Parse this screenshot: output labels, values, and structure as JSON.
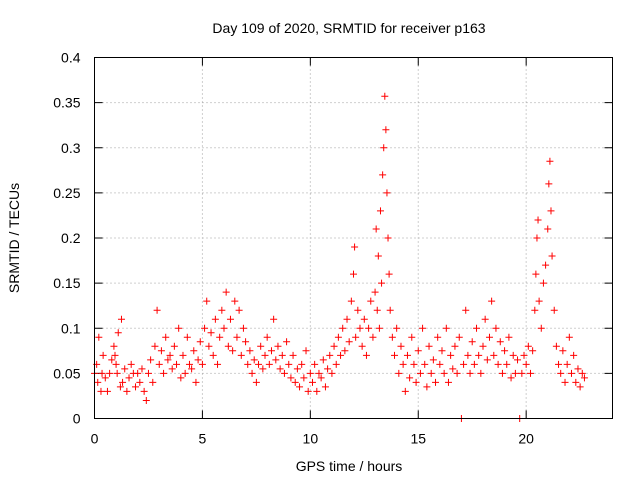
{
  "chart_data": {
    "type": "scatter",
    "title": "Day 109 of 2020, SRMTID for receiver p163",
    "xlabel": "GPS time / hours",
    "ylabel": "SRMTID / TECUs",
    "xlim": [
      0,
      24
    ],
    "ylim": [
      0,
      0.4
    ],
    "x_ticks": [
      0,
      5,
      10,
      15,
      20
    ],
    "x_tick_labels": [
      "0",
      "5",
      "10",
      "15",
      "20"
    ],
    "y_ticks": [
      0,
      0.05,
      0.1,
      0.15,
      0.2,
      0.25,
      0.3,
      0.35,
      0.4
    ],
    "y_tick_labels": [
      "0",
      "0.05",
      "0.1",
      "0.15",
      "0.2",
      "0.25",
      "0.3",
      "0.35",
      "0.4"
    ],
    "grid": true,
    "marker": "+",
    "colors": {
      "points": "#ff0000",
      "grid": "#a0a0a0",
      "axes": "#000000"
    },
    "series": [
      {
        "name": "SRMTID",
        "points": [
          [
            0.0,
            0.05
          ],
          [
            0.1,
            0.06
          ],
          [
            0.15,
            0.04
          ],
          [
            0.2,
            0.09
          ],
          [
            0.3,
            0.03
          ],
          [
            0.35,
            0.05
          ],
          [
            0.4,
            0.07
          ],
          [
            0.5,
            0.045
          ],
          [
            0.6,
            0.03
          ],
          [
            0.7,
            0.05
          ],
          [
            0.8,
            0.065
          ],
          [
            0.9,
            0.08
          ],
          [
            0.95,
            0.07
          ],
          [
            1.0,
            0.06
          ],
          [
            1.05,
            0.05
          ],
          [
            1.1,
            0.095
          ],
          [
            1.2,
            0.035
          ],
          [
            1.25,
            0.11
          ],
          [
            1.3,
            0.04
          ],
          [
            1.4,
            0.055
          ],
          [
            1.5,
            0.03
          ],
          [
            1.6,
            0.045
          ],
          [
            1.7,
            0.06
          ],
          [
            1.8,
            0.05
          ],
          [
            1.9,
            0.035
          ],
          [
            2.0,
            0.05
          ],
          [
            2.1,
            0.04
          ],
          [
            2.2,
            0.055
          ],
          [
            2.3,
            0.03
          ],
          [
            2.4,
            0.02
          ],
          [
            2.5,
            0.05
          ],
          [
            2.6,
            0.065
          ],
          [
            2.7,
            0.04
          ],
          [
            2.8,
            0.08
          ],
          [
            2.9,
            0.12
          ],
          [
            3.0,
            0.06
          ],
          [
            3.1,
            0.075
          ],
          [
            3.2,
            0.05
          ],
          [
            3.3,
            0.09
          ],
          [
            3.4,
            0.065
          ],
          [
            3.5,
            0.07
          ],
          [
            3.6,
            0.055
          ],
          [
            3.7,
            0.08
          ],
          [
            3.8,
            0.06
          ],
          [
            3.9,
            0.1
          ],
          [
            4.0,
            0.045
          ],
          [
            4.1,
            0.07
          ],
          [
            4.2,
            0.05
          ],
          [
            4.3,
            0.09
          ],
          [
            4.4,
            0.06
          ],
          [
            4.5,
            0.055
          ],
          [
            4.6,
            0.075
          ],
          [
            4.7,
            0.04
          ],
          [
            4.8,
            0.065
          ],
          [
            4.9,
            0.085
          ],
          [
            5.0,
            0.06
          ],
          [
            5.1,
            0.1
          ],
          [
            5.2,
            0.13
          ],
          [
            5.3,
            0.08
          ],
          [
            5.4,
            0.095
          ],
          [
            5.5,
            0.07
          ],
          [
            5.6,
            0.11
          ],
          [
            5.7,
            0.06
          ],
          [
            5.8,
            0.09
          ],
          [
            5.9,
            0.12
          ],
          [
            6.0,
            0.1
          ],
          [
            6.1,
            0.14
          ],
          [
            6.2,
            0.08
          ],
          [
            6.3,
            0.11
          ],
          [
            6.4,
            0.075
          ],
          [
            6.5,
            0.13
          ],
          [
            6.6,
            0.09
          ],
          [
            6.7,
            0.12
          ],
          [
            6.8,
            0.07
          ],
          [
            6.9,
            0.1
          ],
          [
            7.0,
            0.085
          ],
          [
            7.1,
            0.06
          ],
          [
            7.2,
            0.075
          ],
          [
            7.3,
            0.05
          ],
          [
            7.4,
            0.065
          ],
          [
            7.5,
            0.04
          ],
          [
            7.6,
            0.06
          ],
          [
            7.7,
            0.08
          ],
          [
            7.8,
            0.055
          ],
          [
            7.9,
            0.07
          ],
          [
            8.0,
            0.09
          ],
          [
            8.1,
            0.06
          ],
          [
            8.2,
            0.075
          ],
          [
            8.3,
            0.11
          ],
          [
            8.4,
            0.065
          ],
          [
            8.5,
            0.08
          ],
          [
            8.6,
            0.055
          ],
          [
            8.7,
            0.07
          ],
          [
            8.8,
            0.05
          ],
          [
            8.9,
            0.085
          ],
          [
            9.0,
            0.06
          ],
          [
            9.1,
            0.045
          ],
          [
            9.2,
            0.07
          ],
          [
            9.3,
            0.04
          ],
          [
            9.4,
            0.055
          ],
          [
            9.5,
            0.035
          ],
          [
            9.6,
            0.06
          ],
          [
            9.7,
            0.045
          ],
          [
            9.8,
            0.075
          ],
          [
            9.9,
            0.03
          ],
          [
            10.0,
            0.05
          ],
          [
            10.1,
            0.04
          ],
          [
            10.2,
            0.06
          ],
          [
            10.3,
            0.03
          ],
          [
            10.4,
            0.05
          ],
          [
            10.5,
            0.045
          ],
          [
            10.6,
            0.065
          ],
          [
            10.7,
            0.035
          ],
          [
            10.8,
            0.055
          ],
          [
            10.9,
            0.07
          ],
          [
            11.0,
            0.05
          ],
          [
            11.1,
            0.08
          ],
          [
            11.2,
            0.06
          ],
          [
            11.3,
            0.09
          ],
          [
            11.4,
            0.07
          ],
          [
            11.5,
            0.1
          ],
          [
            11.6,
            0.075
          ],
          [
            11.7,
            0.11
          ],
          [
            11.8,
            0.085
          ],
          [
            11.9,
            0.13
          ],
          [
            12.0,
            0.16
          ],
          [
            12.05,
            0.19
          ],
          [
            12.1,
            0.09
          ],
          [
            12.2,
            0.12
          ],
          [
            12.3,
            0.1
          ],
          [
            12.4,
            0.08
          ],
          [
            12.5,
            0.11
          ],
          [
            12.6,
            0.07
          ],
          [
            12.7,
            0.1
          ],
          [
            12.8,
            0.13
          ],
          [
            12.9,
            0.09
          ],
          [
            13.0,
            0.14
          ],
          [
            13.05,
            0.21
          ],
          [
            13.1,
            0.12
          ],
          [
            13.15,
            0.18
          ],
          [
            13.2,
            0.1
          ],
          [
            13.25,
            0.23
          ],
          [
            13.3,
            0.15
          ],
          [
            13.35,
            0.27
          ],
          [
            13.4,
            0.3
          ],
          [
            13.45,
            0.357
          ],
          [
            13.5,
            0.32
          ],
          [
            13.55,
            0.25
          ],
          [
            13.6,
            0.2
          ],
          [
            13.65,
            0.16
          ],
          [
            13.7,
            0.12
          ],
          [
            13.8,
            0.09
          ],
          [
            13.9,
            0.07
          ],
          [
            14.0,
            0.1
          ],
          [
            14.1,
            0.05
          ],
          [
            14.2,
            0.08
          ],
          [
            14.3,
            0.06
          ],
          [
            14.4,
            0.03
          ],
          [
            14.5,
            0.07
          ],
          [
            14.6,
            0.045
          ],
          [
            14.7,
            0.09
          ],
          [
            14.8,
            0.06
          ],
          [
            14.9,
            0.04
          ],
          [
            15.0,
            0.075
          ],
          [
            15.1,
            0.05
          ],
          [
            15.2,
            0.1
          ],
          [
            15.3,
            0.06
          ],
          [
            15.4,
            0.035
          ],
          [
            15.5,
            0.08
          ],
          [
            15.6,
            0.05
          ],
          [
            15.7,
            0.065
          ],
          [
            15.8,
            0.04
          ],
          [
            15.9,
            0.09
          ],
          [
            16.0,
            0.06
          ],
          [
            16.1,
            0.075
          ],
          [
            16.2,
            0.05
          ],
          [
            16.3,
            0.1
          ],
          [
            16.4,
            0.04
          ],
          [
            16.5,
            0.07
          ],
          [
            16.6,
            0.055
          ],
          [
            16.7,
            0.08
          ],
          [
            16.8,
            0.05
          ],
          [
            16.9,
            0.09
          ],
          [
            17.0,
            0.0
          ],
          [
            17.1,
            0.06
          ],
          [
            17.2,
            0.12
          ],
          [
            17.3,
            0.07
          ],
          [
            17.4,
            0.05
          ],
          [
            17.5,
            0.085
          ],
          [
            17.6,
            0.06
          ],
          [
            17.7,
            0.1
          ],
          [
            17.8,
            0.07
          ],
          [
            17.9,
            0.05
          ],
          [
            18.0,
            0.08
          ],
          [
            18.1,
            0.11
          ],
          [
            18.2,
            0.065
          ],
          [
            18.3,
            0.09
          ],
          [
            18.4,
            0.13
          ],
          [
            18.5,
            0.07
          ],
          [
            18.6,
            0.1
          ],
          [
            18.7,
            0.06
          ],
          [
            18.8,
            0.085
          ],
          [
            18.9,
            0.05
          ],
          [
            19.0,
            0.075
          ],
          [
            19.1,
            0.06
          ],
          [
            19.2,
            0.09
          ],
          [
            19.3,
            0.045
          ],
          [
            19.4,
            0.07
          ],
          [
            19.5,
            0.05
          ],
          [
            19.6,
            0.065
          ],
          [
            19.7,
            0.0
          ],
          [
            19.8,
            0.05
          ],
          [
            19.9,
            0.07
          ],
          [
            20.0,
            0.06
          ],
          [
            20.1,
            0.08
          ],
          [
            20.2,
            0.05
          ],
          [
            20.3,
            0.075
          ],
          [
            20.4,
            0.12
          ],
          [
            20.45,
            0.16
          ],
          [
            20.5,
            0.2
          ],
          [
            20.55,
            0.22
          ],
          [
            20.6,
            0.13
          ],
          [
            20.7,
            0.1
          ],
          [
            20.8,
            0.15
          ],
          [
            20.9,
            0.17
          ],
          [
            21.0,
            0.21
          ],
          [
            21.05,
            0.26
          ],
          [
            21.1,
            0.285
          ],
          [
            21.15,
            0.23
          ],
          [
            21.2,
            0.18
          ],
          [
            21.3,
            0.12
          ],
          [
            21.4,
            0.08
          ],
          [
            21.5,
            0.06
          ],
          [
            21.6,
            0.05
          ],
          [
            21.7,
            0.075
          ],
          [
            21.8,
            0.04
          ],
          [
            21.9,
            0.06
          ],
          [
            22.0,
            0.09
          ],
          [
            22.1,
            0.05
          ],
          [
            22.2,
            0.07
          ],
          [
            22.3,
            0.04
          ],
          [
            22.4,
            0.055
          ],
          [
            22.5,
            0.035
          ],
          [
            22.6,
            0.05
          ],
          [
            22.7,
            0.045
          ]
        ]
      }
    ]
  }
}
